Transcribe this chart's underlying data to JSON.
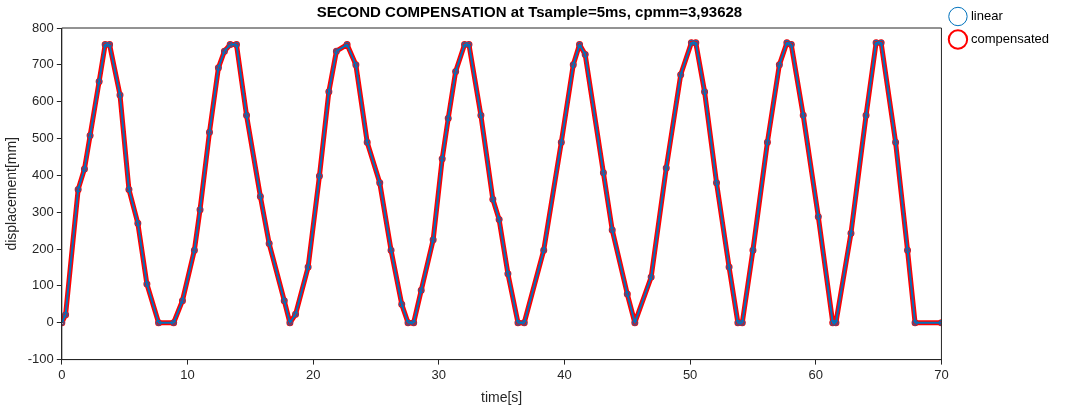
{
  "chart_data": {
    "type": "line",
    "title": "SECOND COMPENSATION at Tsample=5ms, cpmm=3,93628",
    "xlabel": "time[s]",
    "ylabel": "displacement[mm]",
    "x": [
      0,
      0.3,
      1.3,
      1.8,
      2.25,
      2.97,
      3.45,
      3.8,
      4.63,
      5.34,
      6.05,
      6.77,
      7.7,
      8.9,
      9.6,
      10.55,
      11.0,
      11.75,
      12.46,
      12.94,
      13.4,
      13.9,
      14.7,
      15.8,
      16.5,
      17.7,
      18.15,
      18.6,
      19.6,
      20.5,
      21.25,
      21.85,
      22.7,
      23.4,
      24.3,
      25.3,
      26.2,
      27.05,
      27.55,
      28.0,
      28.6,
      29.55,
      30.27,
      30.75,
      31.34,
      32.05,
      32.4,
      33.35,
      34.3,
      34.8,
      35.5,
      36.3,
      36.8,
      38.35,
      39.75,
      40.7,
      41.2,
      41.65,
      43.1,
      43.8,
      45.0,
      45.6,
      46.9,
      48.1,
      49.25,
      50.1,
      50.45,
      51.15,
      52.1,
      53.1,
      53.8,
      54.15,
      55.0,
      56.15,
      57.1,
      57.7,
      58.05,
      59.0,
      60.2,
      61.35,
      61.6,
      62.8,
      64.0,
      64.8,
      65.2,
      66.35,
      67.3,
      67.9,
      70
    ],
    "series": [
      {
        "name": "linear",
        "color": "#0072bd",
        "values": [
          0,
          22,
          362,
          417,
          508,
          655,
          755,
          755,
          618,
          362,
          270,
          105,
          0,
          0,
          60,
          197,
          307,
          517,
          692,
          737,
          755,
          755,
          563,
          343,
          215,
          60,
          0,
          23,
          151,
          398,
          627,
          737,
          755,
          700,
          490,
          380,
          197,
          50,
          0,
          0,
          88,
          225,
          445,
          555,
          682,
          755,
          755,
          563,
          335,
          280,
          133,
          0,
          0,
          197,
          490,
          700,
          755,
          728,
          407,
          252,
          78,
          0,
          124,
          420,
          673,
          760,
          760,
          627,
          380,
          151,
          0,
          0,
          197,
          490,
          700,
          760,
          755,
          563,
          288,
          0,
          0,
          243,
          563,
          760,
          760,
          490,
          197,
          0,
          0
        ]
      },
      {
        "name": "compensated",
        "color": "#ff0000",
        "values": [
          0,
          22,
          362,
          417,
          508,
          655,
          755,
          755,
          618,
          362,
          270,
          105,
          0,
          0,
          60,
          197,
          307,
          517,
          692,
          737,
          755,
          755,
          563,
          343,
          215,
          60,
          0,
          23,
          151,
          398,
          627,
          737,
          755,
          700,
          490,
          380,
          197,
          50,
          0,
          0,
          88,
          225,
          445,
          555,
          682,
          755,
          755,
          563,
          335,
          280,
          133,
          0,
          0,
          197,
          490,
          700,
          755,
          728,
          407,
          252,
          78,
          0,
          124,
          420,
          673,
          760,
          760,
          627,
          380,
          151,
          0,
          0,
          197,
          490,
          700,
          760,
          755,
          563,
          288,
          0,
          0,
          243,
          563,
          760,
          760,
          490,
          197,
          0,
          0
        ]
      }
    ],
    "xlim": [
      0,
      70
    ],
    "xticks": [
      0,
      10,
      20,
      30,
      40,
      50,
      60,
      70
    ],
    "ylim": [
      -100,
      800
    ],
    "yticks": [
      -100,
      0,
      100,
      200,
      300,
      400,
      500,
      600,
      700,
      800
    ],
    "grid": false,
    "legend": "right",
    "marker": "circle",
    "line_style": "solid"
  }
}
